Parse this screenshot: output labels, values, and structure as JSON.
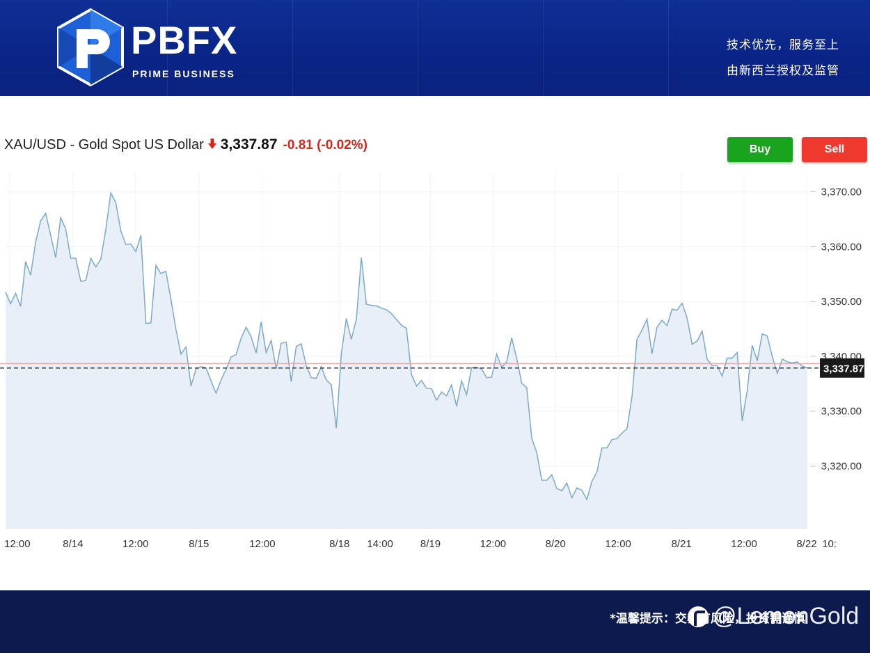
{
  "header": {
    "brand": "PBFX",
    "brand_sub": "PRIME BUSINESS",
    "slogan_line1": "技术优先，服务至上",
    "slogan_line2": "由新西兰授权及监管",
    "bg_color": "#0b2688"
  },
  "quote": {
    "instrument": "XAU/USD - Gold Spot US Dollar",
    "direction_icon": "arrow-down-icon",
    "price": "3,337.87",
    "change": "-0.81 (-0.02%)",
    "change_color": "#d4261b"
  },
  "actions": {
    "buy_label": "Buy",
    "buy_color": "#19a31f",
    "sell_label": "Sell",
    "sell_color": "#f0392e"
  },
  "chart_data": {
    "type": "area",
    "title": "",
    "xlabel": "",
    "ylabel": "",
    "ylim": [
      3308.5,
      3373.5
    ],
    "y_ticks": [
      3320,
      3330,
      3340,
      3350,
      3360,
      3370
    ],
    "y_tick_labels": [
      "3,320.00",
      "3,330.00",
      "3,340.00",
      "3,350.00",
      "3,360.00",
      "3,370.00"
    ],
    "x_tick_labels": [
      "12:00",
      "8/14",
      "12:00",
      "8/15",
      "12:00",
      "8/18",
      "14:00",
      "8/19",
      "12:00",
      "8/20",
      "12:00",
      "8/21",
      "12:00",
      "8/22",
      "10:"
    ],
    "x_tick_positions": [
      0.5,
      8.3,
      16.0,
      23.8,
      31.6,
      41.1,
      46.1,
      52.3,
      60.0,
      67.7,
      75.4,
      83.2,
      90.9,
      98.6,
      101.4
    ],
    "x_range": [
      0,
      106.4
    ],
    "series": [
      {
        "values": [
          3351.7,
          3349.6,
          3351.5,
          3349.1,
          3357.3,
          3354.8,
          3360.8,
          3364.7,
          3366.1,
          3362.1,
          3358.0,
          3365.3,
          3363.2,
          3357.9,
          3357.9,
          3353.7,
          3353.8,
          3357.9,
          3356.3,
          3357.7,
          3363.1,
          3369.8,
          3368.0,
          3362.9,
          3360.4,
          3360.5,
          3359.1,
          3362.1,
          3346.0,
          3346.1,
          3356.6,
          3355.1,
          3355.5,
          3350.4,
          3344.9,
          3340.4,
          3341.7,
          3334.6,
          3337.7,
          3338.1,
          3337.9,
          3335.5,
          3333.3,
          3335.7,
          3337.6,
          3339.9,
          3340.3,
          3343.3,
          3345.3,
          3343.6,
          3340.6,
          3346.3,
          3340.7,
          3342.9,
          3337.7,
          3342.4,
          3342.6,
          3335.4,
          3341.8,
          3342.3,
          3338.3,
          3336.1,
          3336.0,
          3338.1,
          3335.7,
          3334.8,
          3326.9,
          3340.5,
          3346.9,
          3343.1,
          3346.8,
          3358.0,
          3349.5,
          3349.3,
          3349.2,
          3348.8,
          3348.5,
          3347.8,
          3346.7,
          3345.7,
          3345.1,
          3336.7,
          3334.6,
          3335.6,
          3334.2,
          3334.1,
          3332.0,
          3333.5,
          3332.8,
          3334.8,
          3330.9,
          3335.5,
          3333.0,
          3338.0,
          3338.0,
          3337.7,
          3336.1,
          3336.2,
          3340.4,
          3338.0,
          3339.0,
          3343.4,
          3339.6,
          3335.1,
          3334.3,
          3325.1,
          3322.4,
          3317.4,
          3317.4,
          3318.4,
          3315.9,
          3315.5,
          3316.9,
          3314.2,
          3316.0,
          3315.6,
          3313.9,
          3317.2,
          3318.9,
          3323.3,
          3323.3,
          3324.8,
          3325.0,
          3326.0,
          3326.8,
          3332.6,
          3343.1,
          3344.8,
          3346.8,
          3340.5,
          3345.3,
          3346.6,
          3345.6,
          3348.6,
          3348.4,
          3349.7,
          3347.0,
          3342.2,
          3342.8,
          3344.6,
          3339.5,
          3338.3,
          3338.3,
          3336.4,
          3339.7,
          3339.7,
          3340.7,
          3328.2,
          3333.8,
          3342.0,
          3339.2,
          3344.1,
          3343.7,
          3340.0,
          3336.9,
          3339.5,
          3339.0,
          3338.8,
          3339.0,
          3338.2,
          3337.9
        ]
      }
    ],
    "current_value": 3337.87,
    "current_label": "3,337.87",
    "reference_value": 3338.68,
    "line_color": "#7aaac8",
    "fill_color": "#e8eff7",
    "reference_line_color": "#e9a6a8",
    "grid": true,
    "legend": "none"
  },
  "footer": {
    "tip": "*温馨提示：交易有风险，投资需谨慎",
    "watermark": "@LemonGold",
    "bg_color": "#0c1a4e"
  }
}
